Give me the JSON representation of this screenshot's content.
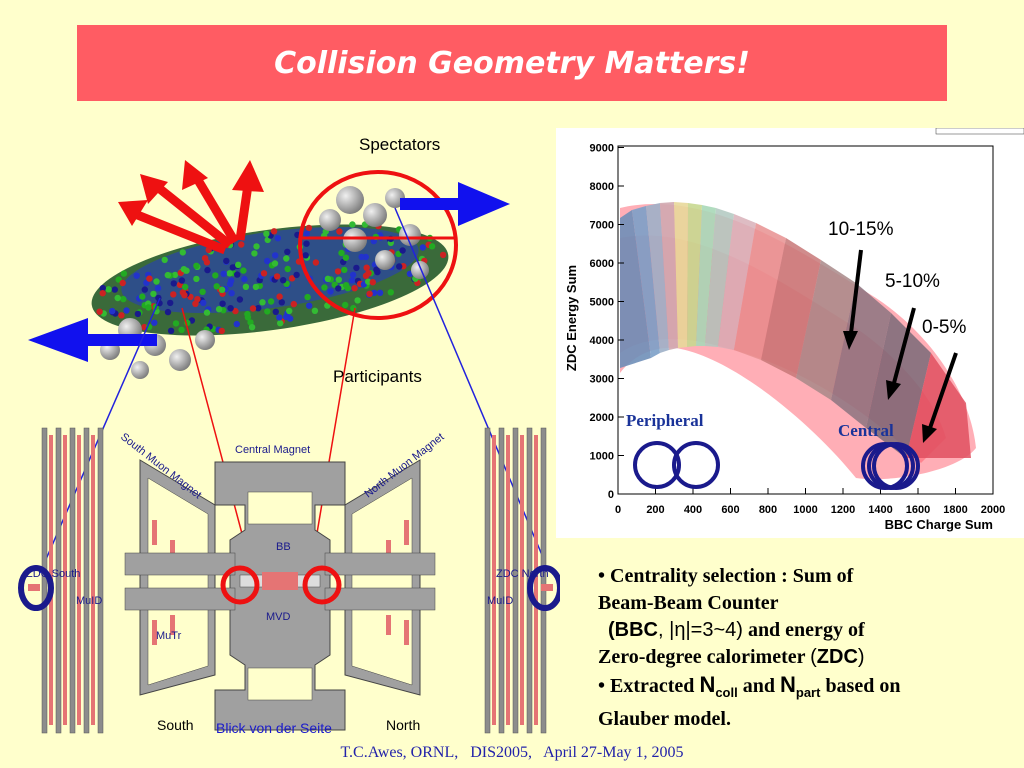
{
  "slide": {
    "title": "Collision Geometry Matters!",
    "footer": "T.C.Awes, ORNL,   DIS2005,   April 27-May 1, 2005"
  },
  "collision": {
    "spectators_label": "Spectators",
    "participants_label": "Participants"
  },
  "detector": {
    "labels": {
      "central_magnet": "Central Magnet",
      "south_muon_magnet": "South Muon Magnet",
      "north_muon_magnet": "North Muon Magnet",
      "bb": "BB",
      "mvd": "MVD",
      "mutr": "MuTr",
      "zdc_south": "ZDC South",
      "zdc_north": "ZDC North",
      "muid_left": "MuID",
      "muid_right": "MuID",
      "south": "South",
      "north": "North",
      "caption": "Blick von der Seite"
    }
  },
  "plot": {
    "ylabel": "ZDC Energy Sum",
    "xlabel": "BBC Charge Sum",
    "x_ticks": [
      "0",
      "200",
      "400",
      "600",
      "800",
      "1000",
      "1200",
      "1400",
      "1600",
      "1800",
      "2000"
    ],
    "y_ticks": [
      "0",
      "1000",
      "2000",
      "3000",
      "4000",
      "5000",
      "6000",
      "7000",
      "8000",
      "9000"
    ],
    "annotations": {
      "c10_15": "10-15%",
      "c5_10": "5-10%",
      "c0_5": "0-5%",
      "peripheral": "Peripheral",
      "central": "Central"
    },
    "colors": {
      "peripheral_text": "#1a3399",
      "ring": "#1a1a8c",
      "points": "#ff3344"
    }
  },
  "bullets": {
    "b1_l1": "Centrality selection : Sum of",
    "b1_l2": "Beam-Beam Counter",
    "b1_bbc": "BBC",
    "b1_eta": "|η|=3~4",
    "b1_mid": "and energy of",
    "b1_l4": "Zero-degree calorimeter",
    "b1_zdc": "ZDC",
    "b2_pre": "Extracted",
    "n_sym": "N",
    "coll_sub": "coll",
    "and": "and",
    "part_sub": "part",
    "b2_post": "based on",
    "b2_l2": "Glauber model."
  }
}
